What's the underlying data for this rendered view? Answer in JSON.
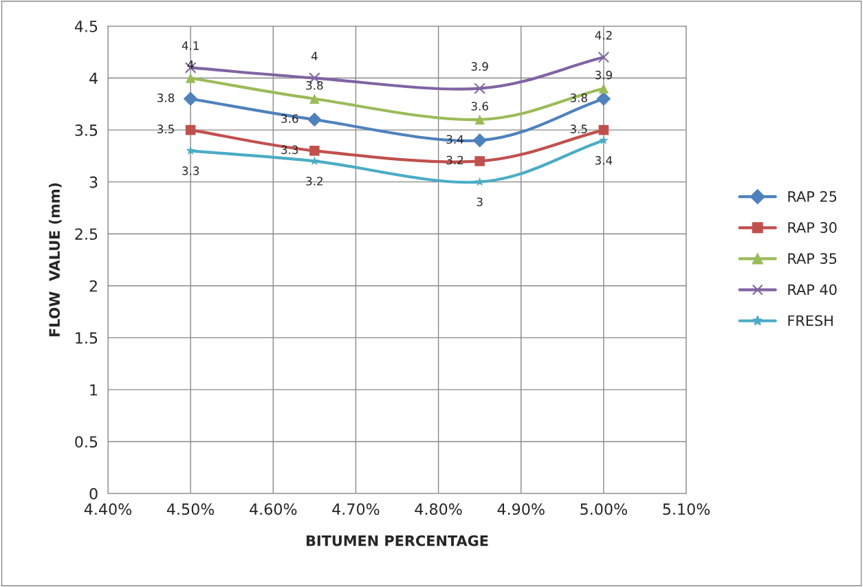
{
  "chart_data": {
    "type": "line",
    "xlabel": "BITUMEN PERCENTAGE",
    "ylabel": "FLOW  VALUE (mm)",
    "x": [
      4.5,
      4.65,
      4.85,
      5.0
    ],
    "series": [
      {
        "name": "RAP 25",
        "color": "#4f81bd",
        "marker": "diamond",
        "values": [
          3.8,
          3.6,
          3.4,
          3.8
        ]
      },
      {
        "name": "RAP 30",
        "color": "#c0504d",
        "marker": "square",
        "values": [
          3.5,
          3.3,
          3.2,
          3.5
        ]
      },
      {
        "name": "RAP 35",
        "color": "#9bbb59",
        "marker": "triangle",
        "values": [
          4,
          3.8,
          3.6,
          3.9
        ]
      },
      {
        "name": "RAP 40",
        "color": "#8064a2",
        "marker": "cross",
        "values": [
          4.1,
          4,
          3.9,
          4.2
        ]
      },
      {
        "name": "FRESH",
        "color": "#4bacc6",
        "marker": "star",
        "values": [
          3.3,
          3.2,
          3,
          3.4
        ]
      }
    ],
    "xlim": [
      4.4,
      5.1
    ],
    "xticks": [
      {
        "value": 4.4,
        "label": "4.40%"
      },
      {
        "value": 4.5,
        "label": "4.50%"
      },
      {
        "value": 4.6,
        "label": "4.60%"
      },
      {
        "value": 4.7,
        "label": "4.70%"
      },
      {
        "value": 4.8,
        "label": "4.80%"
      },
      {
        "value": 4.9,
        "label": "4.90%"
      },
      {
        "value": 5.0,
        "label": "5.00%"
      },
      {
        "value": 5.1,
        "label": "5.10%"
      }
    ],
    "ylim": [
      0,
      4.5
    ],
    "yticks": [
      0,
      0.5,
      1,
      1.5,
      2,
      2.5,
      3,
      3.5,
      4,
      4.5
    ],
    "grid": true,
    "legend": "right",
    "data_labels": true,
    "line_style": "solid"
  }
}
